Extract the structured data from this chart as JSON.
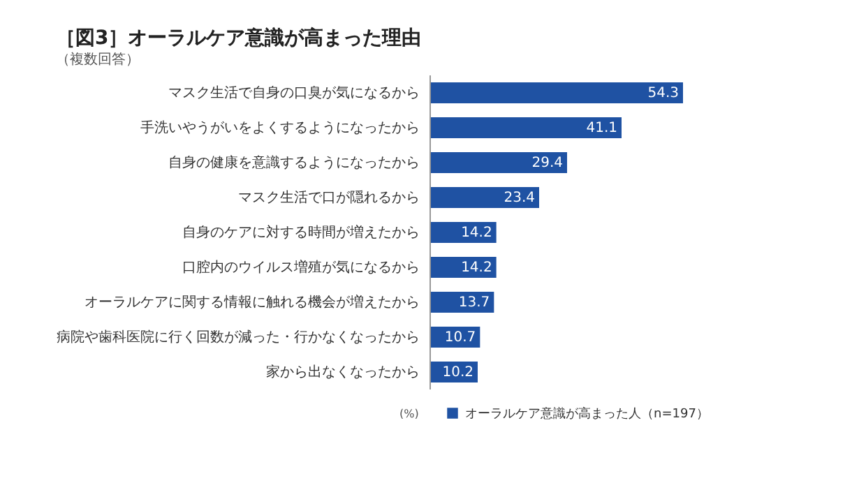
{
  "chart_data": {
    "type": "bar",
    "orientation": "horizontal",
    "title": "［図3］オーラルケア意識が高まった理由",
    "subtitle": "（複数回答）",
    "categories": [
      "マスク生活で自身の口臭が気になるから",
      "手洗いやうがいをよくするようになったから",
      "自身の健康を意識するようになったから",
      "マスク生活で口が隠れるから",
      "自身のケアに対する時間が増えたから",
      "口腔内のウイルス増殖が気になるから",
      "オーラルケアに関する情報に触れる機会が増えたから",
      "病院や歯科医院に行く回数が減った・行かなくなったから",
      "家から出なくなったから"
    ],
    "series": [
      {
        "name": "オーラルケア意識が高まった人（n=197）",
        "color": "#1f52a3",
        "values": [
          54.3,
          41.1,
          29.4,
          23.4,
          14.2,
          14.2,
          13.7,
          10.7,
          10.2
        ]
      }
    ],
    "tick_labels": "y",
    "data_labels": true,
    "legend": "bottom right",
    "annotations": [
      "(%)"
    ]
  }
}
